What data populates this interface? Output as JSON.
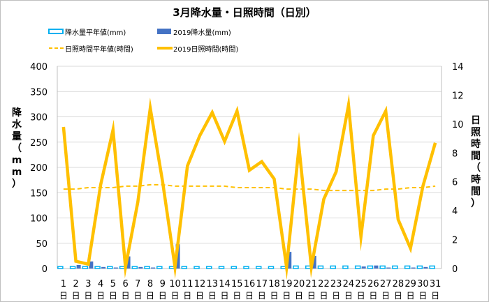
{
  "chart_data": {
    "type": "bar",
    "title": "3月降水量・日照時間（日別）",
    "legend": [
      {
        "label": "降水量平年値(mm)",
        "marker": "outlined-bar",
        "color": "#00b0f0"
      },
      {
        "label": "2019降水量(mm)",
        "marker": "bar",
        "color": "#4472c4"
      },
      {
        "label": "日照時間平年値(時間)",
        "marker": "dashed-line",
        "color": "#ffc000"
      },
      {
        "label": "2019日照時間(時間)",
        "marker": "line",
        "color": "#ffc000"
      }
    ],
    "legend_position": "top",
    "ylabel_left": "降水量（mm）",
    "ylabel_right": "日照時間（時間）",
    "ylim_left": [
      0,
      400
    ],
    "ylim_right": [
      0,
      14
    ],
    "yticks_left": [
      "0",
      "50",
      "100",
      "150",
      "200",
      "250",
      "300",
      "350",
      "400"
    ],
    "yticks_right": [
      "0",
      "2",
      "4",
      "6",
      "8",
      "10",
      "12",
      "14"
    ],
    "categories": [
      "1",
      "2",
      "3",
      "4",
      "5",
      "6",
      "7",
      "8",
      "9",
      "10",
      "11",
      "12",
      "13",
      "14",
      "15",
      "16",
      "17",
      "18",
      "19",
      "20",
      "21",
      "22",
      "23",
      "24",
      "25",
      "26",
      "27",
      "28",
      "29",
      "30",
      "31"
    ],
    "category_suffix": "日",
    "series": [
      {
        "name": "降水量平年値(mm)",
        "axis": "left",
        "type": "bar",
        "color": "#00b0f0",
        "values": [
          4,
          4,
          4,
          4,
          4,
          4,
          4,
          4,
          4,
          4,
          4,
          4,
          4,
          4,
          4,
          4,
          4,
          4,
          4,
          5,
          5,
          5,
          5,
          5,
          5,
          5,
          5,
          5,
          5,
          5,
          5
        ]
      },
      {
        "name": "2019降水量(mm)",
        "axis": "left",
        "type": "bar",
        "color": "#4472c4",
        "values": [
          0,
          7,
          14,
          3,
          2,
          24,
          3,
          2,
          0,
          48,
          0,
          0,
          0,
          0,
          0,
          0,
          0,
          0,
          33,
          0,
          25,
          0,
          0,
          0,
          4,
          6,
          2,
          0,
          2,
          3,
          0
        ]
      },
      {
        "name": "日照時間平年値(時間)",
        "axis": "right",
        "type": "line",
        "style": "dashed",
        "color": "#ffc000",
        "values": [
          5.5,
          5.5,
          5.6,
          5.6,
          5.6,
          5.7,
          5.7,
          5.8,
          5.8,
          5.7,
          5.7,
          5.7,
          5.7,
          5.7,
          5.6,
          5.6,
          5.6,
          5.6,
          5.5,
          5.5,
          5.5,
          5.4,
          5.4,
          5.4,
          5.4,
          5.4,
          5.5,
          5.5,
          5.6,
          5.6,
          5.7
        ]
      },
      {
        "name": "2019日照時間(時間)",
        "axis": "right",
        "type": "line",
        "color": "#ffc000",
        "values": [
          9.8,
          0.5,
          0.3,
          5.8,
          9.6,
          0.1,
          4.6,
          11.1,
          6.0,
          0.1,
          7.1,
          9.2,
          10.8,
          8.8,
          10.9,
          6.8,
          7.4,
          6.2,
          0.1,
          8.4,
          0.1,
          4.8,
          6.7,
          11.3,
          2.2,
          9.2,
          10.9,
          3.4,
          1.4,
          5.7,
          8.7
        ]
      }
    ]
  }
}
